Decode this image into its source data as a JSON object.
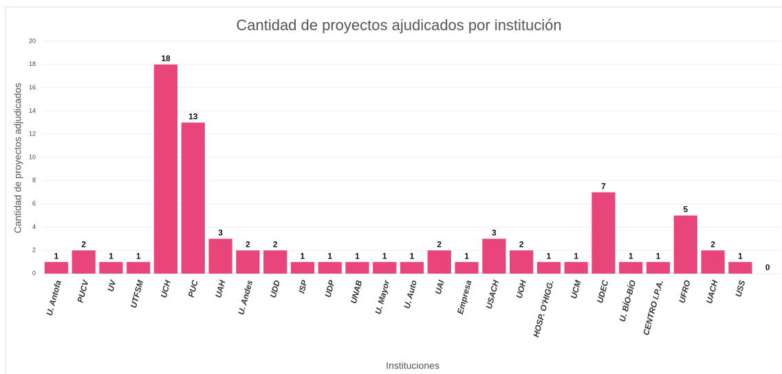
{
  "chart_data": {
    "type": "bar",
    "title": "Cantidad de proyectos ajudicados por institución",
    "x_label": "Instituciones",
    "y_label": "Cantidad de proyectos adjudicados",
    "categories": [
      "U. Antofa",
      "PUCV",
      "UV",
      "UTFSM",
      "UCH",
      "PUC",
      "UAH",
      "U. Andes",
      "UDD",
      "ISP",
      "UDP",
      "UNAB",
      "U. Mayor",
      "U. Auto",
      "UAI",
      "Empresa",
      "USACH",
      "UOH",
      "HOSP. O'HIGG.",
      "UCM",
      "UDEC",
      "U. BÍO-BÍO",
      "CENTRO I.P.A.",
      "UFRO",
      "UACH",
      "USS",
      null
    ],
    "values": [
      1,
      2,
      1,
      1,
      18,
      13,
      3,
      2,
      2,
      1,
      1,
      1,
      1,
      1,
      2,
      1,
      3,
      2,
      1,
      1,
      7,
      1,
      1,
      5,
      2,
      1,
      0
    ],
    "color": "#e8467a",
    "ylim": [
      0,
      20
    ],
    "yticks": [
      0,
      2,
      4,
      6,
      8,
      10,
      12,
      14,
      16,
      18,
      20
    ],
    "grid": true
  }
}
